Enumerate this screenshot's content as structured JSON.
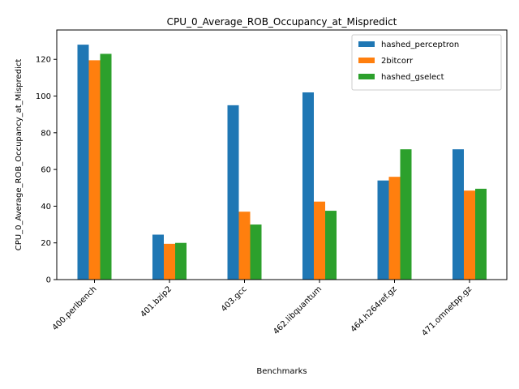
{
  "chart_data": {
    "type": "bar",
    "title": "CPU_0_Average_ROB_Occupancy_at_Mispredict",
    "xlabel": "Benchmarks",
    "ylabel": "CPU_0_Average_ROB_Occupancy_at_Mispredict",
    "ylim": [
      0,
      136
    ],
    "yticks": [
      0,
      20,
      40,
      60,
      80,
      100,
      120
    ],
    "grid": false,
    "legend_position": "top-right",
    "categories": [
      "400.perlbench",
      "401.bzip2",
      "403.gcc",
      "462.libquantum",
      "464.h264ref.gz",
      "471.omnetpp.gz"
    ],
    "series": [
      {
        "name": "hashed_perceptron",
        "color": "#1f77b4",
        "values": [
          128,
          24.5,
          95,
          102,
          54,
          71
        ]
      },
      {
        "name": "2bitcorr",
        "color": "#ff7f0e",
        "values": [
          119.5,
          19.5,
          37,
          42.5,
          56,
          48.5
        ]
      },
      {
        "name": "hashed_gselect",
        "color": "#2ca02c",
        "values": [
          123,
          20,
          30,
          37.5,
          71,
          49.5
        ]
      }
    ]
  }
}
